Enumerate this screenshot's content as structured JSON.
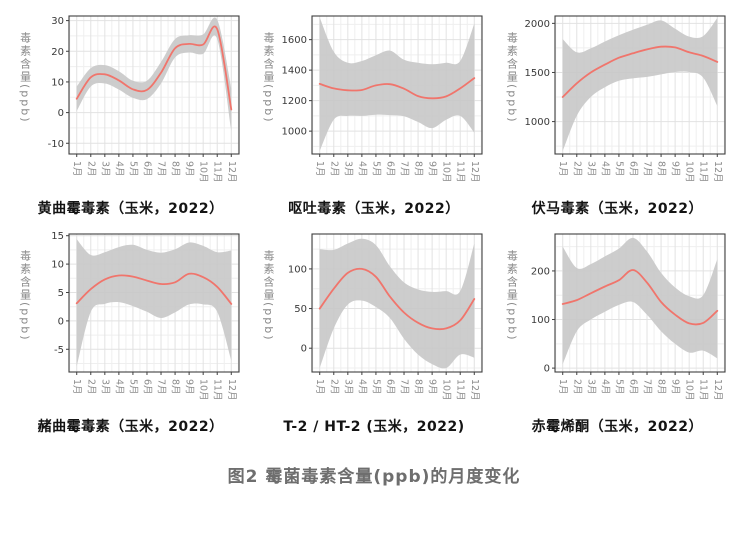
{
  "caption": "图2 霉菌毒素含量(ppb)的月度变化",
  "colors": {
    "line": "#f0756c",
    "band": "#c8c8c8",
    "grid_major": "#e2e2e2",
    "grid_minor": "#efefef",
    "panel_border": "#3f3f3f",
    "tick": "#3f3f3f",
    "ytick_label": "#3a3a3a",
    "xtick_label": "#8c8c8c",
    "title": "#141414",
    "caption": "#6e6e6e"
  },
  "chart_data": [
    {
      "type": "line",
      "title": "黄曲霉毒素（玉米，2022）",
      "ylabel": "毒素含量(ppb)",
      "x_categories": [
        "1月",
        "2月",
        "3月",
        "4月",
        "5月",
        "6月",
        "7月",
        "8月",
        "9月",
        "10月",
        "11月",
        "12月"
      ],
      "yticks": [
        -10,
        0,
        10,
        20,
        30
      ],
      "ylim": [
        -13.5,
        31.5
      ],
      "legend": "none",
      "grid": "on",
      "series": [
        {
          "name": "smoothed_mean",
          "values": [
            4.5,
            11.5,
            12.5,
            10.5,
            7.6,
            7.4,
            13,
            21,
            22.4,
            22.2,
            27.2,
            1
          ]
        }
      ],
      "band": {
        "low": [
          0.5,
          8.5,
          9.5,
          7.5,
          4.8,
          4.4,
          9.5,
          18,
          19.6,
          19.2,
          24,
          -6
        ],
        "high": [
          8.5,
          14.5,
          15.5,
          13.5,
          10.4,
          10.4,
          16.5,
          24,
          25.2,
          25.5,
          30.3,
          8
        ]
      }
    },
    {
      "type": "line",
      "title": "呕吐毒素（玉米，2022）",
      "ylabel": "毒素含量(ppb)",
      "x_categories": [
        "1月",
        "2月",
        "3月",
        "4月",
        "5月",
        "6月",
        "7月",
        "8月",
        "9月",
        "10月",
        "11月",
        "12月"
      ],
      "yticks": [
        1000,
        1200,
        1400,
        1600
      ],
      "ylim": [
        850,
        1755
      ],
      "legend": "none",
      "grid": "on",
      "series": [
        {
          "name": "smoothed_mean",
          "values": [
            1310,
            1280,
            1268,
            1270,
            1300,
            1308,
            1278,
            1230,
            1215,
            1228,
            1280,
            1348
          ]
        }
      ],
      "band": {
        "low": [
          870,
          1075,
          1100,
          1100,
          1108,
          1105,
          1098,
          1060,
          1020,
          1075,
          1100,
          990
        ],
        "high": [
          1745,
          1520,
          1448,
          1460,
          1498,
          1528,
          1468,
          1448,
          1438,
          1448,
          1460,
          1705
        ]
      }
    },
    {
      "type": "line",
      "title": "伏马毒素（玉米，2022）",
      "ylabel": "毒素含量(ppb)",
      "x_categories": [
        "1月",
        "2月",
        "3月",
        "4月",
        "5月",
        "6月",
        "7月",
        "8月",
        "9月",
        "10月",
        "11月",
        "12月"
      ],
      "yticks": [
        1000,
        1500,
        2000
      ],
      "ylim": [
        670,
        2075
      ],
      "legend": "none",
      "grid": "on",
      "series": [
        {
          "name": "smoothed_mean",
          "values": [
            1250,
            1390,
            1500,
            1580,
            1650,
            1695,
            1735,
            1762,
            1755,
            1705,
            1668,
            1608
          ]
        }
      ],
      "band": {
        "low": [
          700,
          1060,
          1250,
          1350,
          1415,
          1440,
          1455,
          1480,
          1505,
          1505,
          1448,
          1160
        ],
        "high": [
          1840,
          1705,
          1745,
          1815,
          1880,
          1935,
          1985,
          2030,
          1945,
          1865,
          1870,
          2055
        ]
      }
    },
    {
      "type": "line",
      "title": "赭曲霉毒素（玉米，2022）",
      "ylabel": "毒素含量(ppb)",
      "x_categories": [
        "1月",
        "2月",
        "3月",
        "4月",
        "5月",
        "6月",
        "7月",
        "8月",
        "9月",
        "10月",
        "11月",
        "12月"
      ],
      "yticks": [
        -5,
        0,
        5,
        10,
        15
      ],
      "ylim": [
        -9,
        15.3
      ],
      "legend": "none",
      "grid": "on",
      "series": [
        {
          "name": "smoothed_mean",
          "values": [
            3.1,
            5.6,
            7.3,
            8.0,
            7.8,
            7.1,
            6.5,
            6.8,
            8.3,
            7.7,
            6.0,
            3.0
          ]
        }
      ],
      "band": {
        "low": [
          -8,
          1.6,
          3.0,
          3.3,
          2.6,
          1.6,
          0.5,
          1.5,
          2.9,
          2.9,
          1.6,
          -7
        ],
        "high": [
          14.4,
          11.6,
          12.1,
          13.0,
          13.4,
          12.5,
          12.0,
          12.6,
          13.8,
          13.2,
          12.1,
          12.4
        ]
      }
    },
    {
      "type": "line",
      "title": "T-2 / HT-2 (玉米，2022)",
      "ylabel": "毒素含量(ppb)",
      "x_categories": [
        "1月",
        "2月",
        "3月",
        "4月",
        "5月",
        "6月",
        "7月",
        "8月",
        "9月",
        "10月",
        "11月",
        "12月"
      ],
      "yticks": [
        0,
        50,
        100
      ],
      "ylim": [
        -30,
        144
      ],
      "legend": "none",
      "grid": "on",
      "series": [
        {
          "name": "smoothed_mean",
          "values": [
            50,
            75,
            95,
            100,
            90,
            65,
            45,
            32,
            25,
            25,
            35,
            62
          ]
        }
      ],
      "band": {
        "low": [
          -25,
          25,
          55,
          60,
          52,
          38,
          12,
          -8,
          -20,
          -25,
          -8,
          -12
        ],
        "high": [
          125,
          124,
          132,
          138,
          130,
          103,
          83,
          74,
          71,
          72,
          72,
          132
        ]
      }
    },
    {
      "type": "line",
      "title": "赤霉烯酮（玉米，2022）",
      "ylabel": "毒素含量(ppb)",
      "x_categories": [
        "1月",
        "2月",
        "3月",
        "4月",
        "5月",
        "6月",
        "7月",
        "8月",
        "9月",
        "10月",
        "11月",
        "12月"
      ],
      "yticks": [
        0,
        100,
        200
      ],
      "ylim": [
        -8,
        276
      ],
      "legend": "none",
      "grid": "on",
      "series": [
        {
          "name": "smoothed_mean",
          "values": [
            132,
            140,
            154,
            168,
            181,
            202,
            176,
            136,
            110,
            92,
            93,
            118
          ]
        }
      ],
      "band": {
        "low": [
          8,
          76,
          100,
          116,
          130,
          136,
          110,
          76,
          50,
          32,
          36,
          20
        ],
        "high": [
          250,
          206,
          214,
          230,
          246,
          268,
          240,
          196,
          166,
          148,
          150,
          224
        ]
      }
    }
  ]
}
